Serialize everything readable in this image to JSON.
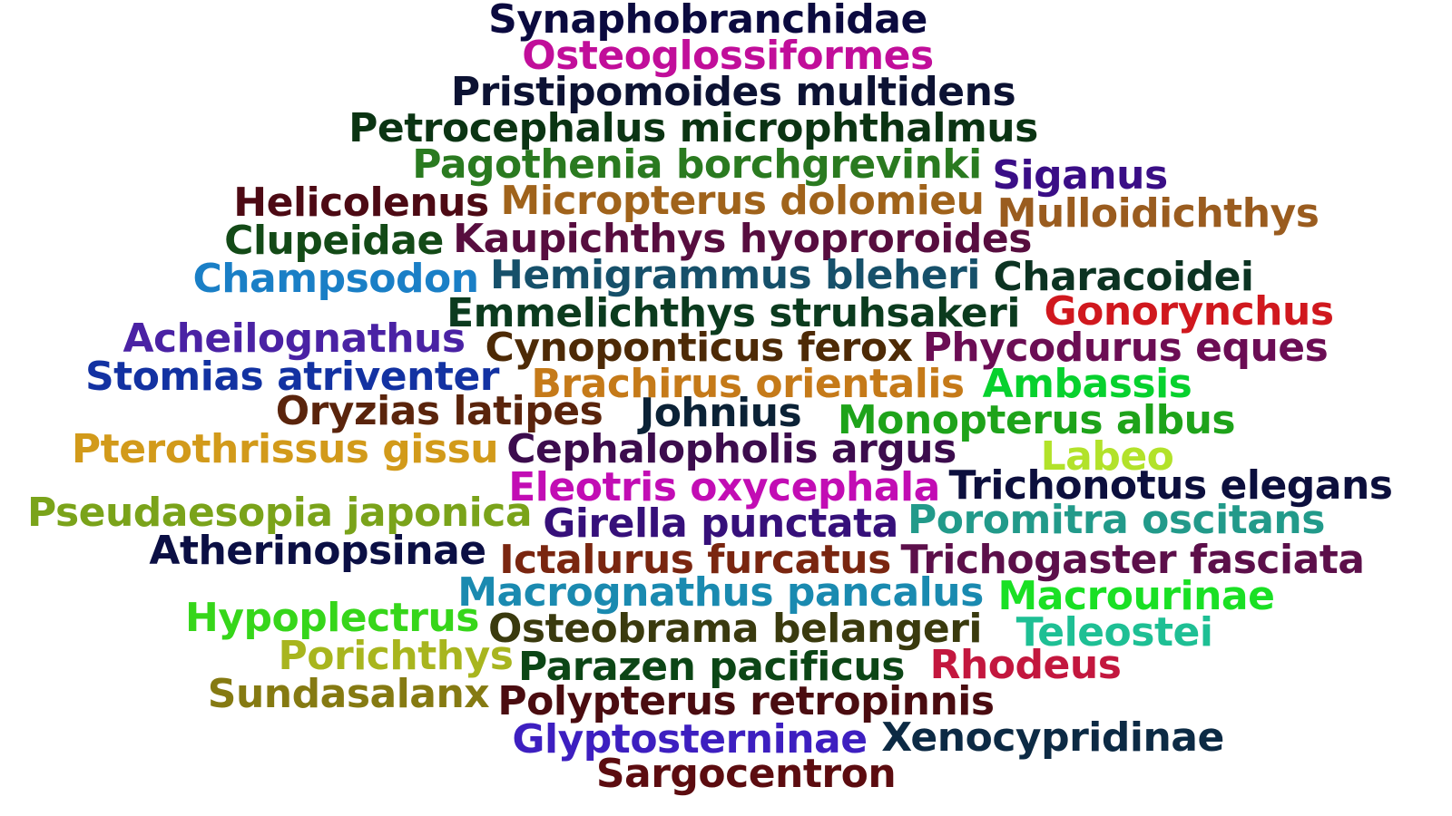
{
  "words": [
    {
      "text": "Synaphobranchidae",
      "color": "#0b0a3f"
    },
    {
      "text": "Osteoglossiformes",
      "color": "#c10e9a"
    },
    {
      "text": "Pristipomoides multidens",
      "color": "#0c1233"
    },
    {
      "text": "Petrocephalus microphthalmus",
      "color": "#0b3413"
    },
    {
      "text": "Pagothenia borchgrevinki",
      "color": "#2a7a20"
    },
    {
      "text": "Siganus",
      "color": "#3a0e86"
    },
    {
      "text": "Helicolenus",
      "color": "#4d0a14"
    },
    {
      "text": "Micropterus dolomieu",
      "color": "#a0631b"
    },
    {
      "text": "Mulloidichthys",
      "color": "#9a5c1f"
    },
    {
      "text": "Clupeidae",
      "color": "#134a17"
    },
    {
      "text": "Kaupichthys hyoproroides",
      "color": "#570d3f"
    },
    {
      "text": "Champsodon",
      "color": "#1a7fc6"
    },
    {
      "text": "Hemigrammus bleheri",
      "color": "#16506a"
    },
    {
      "text": "Characoidei",
      "color": "#0c3322"
    },
    {
      "text": "Emmelichthys struhsakeri",
      "color": "#0b3b1e"
    },
    {
      "text": "Gonorynchus",
      "color": "#d0181e"
    },
    {
      "text": "Acheilognathus",
      "color": "#4a22a4"
    },
    {
      "text": "Cynoponticus ferox",
      "color": "#4d2a06"
    },
    {
      "text": "Phycodurus eques",
      "color": "#6b0d54"
    },
    {
      "text": "Stomias atriventer",
      "color": "#1332a2"
    },
    {
      "text": "Brachirus orientalis",
      "color": "#c57a19"
    },
    {
      "text": "Ambassis",
      "color": "#07d12e"
    },
    {
      "text": "Oryzias latipes",
      "color": "#5a240c"
    },
    {
      "text": "Johnius",
      "color": "#0b2236"
    },
    {
      "text": "Monopterus albus",
      "color": "#1ea31a"
    },
    {
      "text": "Pterothrissus gissu",
      "color": "#d29a1a"
    },
    {
      "text": "Cephalopholis argus",
      "color": "#3c0c4d"
    },
    {
      "text": "Labeo",
      "color": "#b2e22a"
    },
    {
      "text": "Eleotris oxycephala",
      "color": "#c20db4"
    },
    {
      "text": "Trichonotus elegans",
      "color": "#0c0f3d"
    },
    {
      "text": "Pseudaesopia japonica",
      "color": "#7aa31a"
    },
    {
      "text": "Girella punctata",
      "color": "#36107a"
    },
    {
      "text": "Poromitra oscitans",
      "color": "#229a8a"
    },
    {
      "text": "Atherinopsinae",
      "color": "#0b0f44"
    },
    {
      "text": "Ictalurus furcatus",
      "color": "#7a2610"
    },
    {
      "text": "Trichogaster fasciata",
      "color": "#5c0f4a"
    },
    {
      "text": "Macrognathus pancalus",
      "color": "#1a8ab0"
    },
    {
      "text": "Macrourinae",
      "color": "#1ae024"
    },
    {
      "text": "Hypoplectrus",
      "color": "#36d61a"
    },
    {
      "text": "Osteobrama belangeri",
      "color": "#3a3a0e"
    },
    {
      "text": "Teleostei",
      "color": "#1ebf94"
    },
    {
      "text": "Porichthys",
      "color": "#a8b51e"
    },
    {
      "text": "Parazen pacificus",
      "color": "#0c4616"
    },
    {
      "text": "Rhodeus",
      "color": "#c3173e"
    },
    {
      "text": "Sundasalanx",
      "color": "#857a12"
    },
    {
      "text": "Polypterus retropinnis",
      "color": "#4a0c10"
    },
    {
      "text": "Glyptosterninae",
      "color": "#3d1fc0"
    },
    {
      "text": "Xenocypridinae",
      "color": "#0c2a44"
    },
    {
      "text": "Sargocentron",
      "color": "#5c0c10"
    }
  ]
}
